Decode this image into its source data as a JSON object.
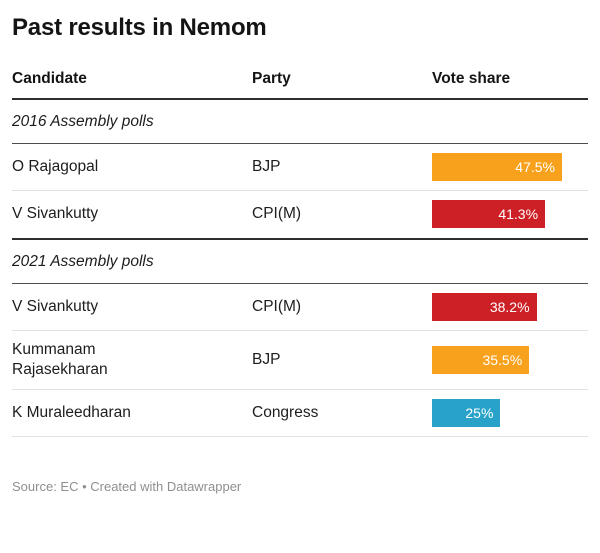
{
  "title": "Past results in Nemom",
  "table": {
    "columns": [
      "Candidate",
      "Party",
      "Vote share"
    ],
    "sections": [
      {
        "label": "2016 Assembly polls",
        "rows": [
          {
            "candidate": "O Rajagopal",
            "party": "BJP",
            "vote_share": 47.5,
            "vote_share_label": "47.5%",
            "bar_color": "#F7A11C"
          },
          {
            "candidate": "V Sivankutty",
            "party": "CPI(M)",
            "vote_share": 41.3,
            "vote_share_label": "41.3%",
            "bar_color": "#CD2026"
          }
        ]
      },
      {
        "label": "2021 Assembly polls",
        "rows": [
          {
            "candidate": "V Sivankutty",
            "party": "CPI(M)",
            "vote_share": 38.2,
            "vote_share_label": "38.2%",
            "bar_color": "#CD2026"
          },
          {
            "candidate": "Kummanam Rajasekharan",
            "party": "BJP",
            "vote_share": 35.5,
            "vote_share_label": "35.5%",
            "bar_color": "#F7A11C"
          },
          {
            "candidate": "K Muraleedharan",
            "party": "Congress",
            "vote_share": 25,
            "vote_share_label": "25%",
            "bar_color": "#28A2C8"
          }
        ]
      }
    ]
  },
  "footer": "Source: EC • Created with Datawrapper",
  "colors": {
    "bjp_orange": "#F7A11C",
    "cpim_red": "#CD2026",
    "congress_blue": "#28A2C8",
    "heavy_rule": "#2e2e2e",
    "section_rule": "#4d4d4d",
    "row_divider": "#e2e2e2",
    "footer_text": "#8f8f8f"
  },
  "chart_data": {
    "type": "table",
    "title": "Past results in Nemom",
    "columns": [
      "Candidate",
      "Party",
      "Vote share"
    ],
    "bar_column": "Vote share",
    "bar_unit": "%",
    "xlim": [
      0,
      57
    ],
    "groups": [
      {
        "group": "2016 Assembly polls",
        "rows": [
          [
            "O Rajagopal",
            "BJP",
            47.5
          ],
          [
            "V Sivankutty",
            "CPI(M)",
            41.3
          ]
        ]
      },
      {
        "group": "2021 Assembly polls",
        "rows": [
          [
            "V Sivankutty",
            "CPI(M)",
            38.2
          ],
          [
            "Kummanam Rajasekharan",
            "BJP",
            35.5
          ],
          [
            "K Muraleedharan",
            "Congress",
            25
          ]
        ]
      }
    ],
    "legend": "none",
    "source": "Source: EC • Created with Datawrapper"
  }
}
